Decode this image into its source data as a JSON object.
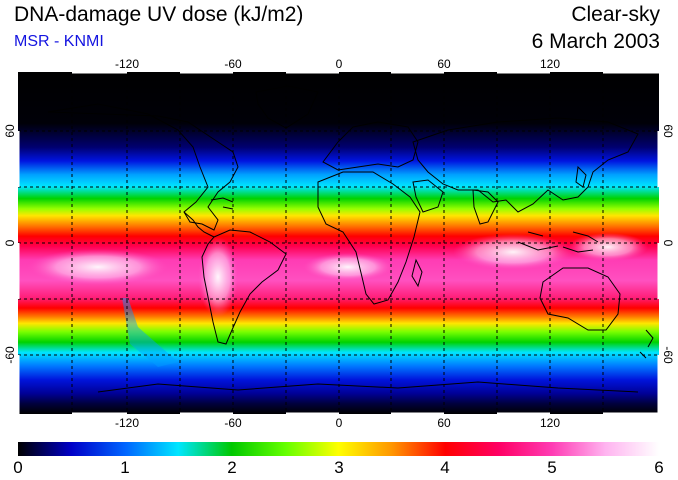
{
  "header": {
    "title": "DNA-damage UV dose (kJ/m2)",
    "subtitle": "MSR - KNMI",
    "condition": "Clear-sky",
    "date": "6 March 2003"
  },
  "map": {
    "lon_ticks": [
      "-120",
      "-60",
      "0",
      "60",
      "120"
    ],
    "lat_ticks": [
      "60",
      "0",
      "-60"
    ],
    "extent": {
      "lon": [
        -180,
        180
      ],
      "lat": [
        -90,
        90
      ]
    },
    "gridlines": "dashed, every 30°"
  },
  "colorbar": {
    "labels": [
      "0",
      "1",
      "2",
      "3",
      "4",
      "5",
      "6"
    ],
    "colors": [
      "#000000",
      "#0000c8",
      "#0064ff",
      "#00e6ff",
      "#00c800",
      "#64ff00",
      "#ffff00",
      "#ff9600",
      "#ff0000",
      "#ff0064",
      "#ff3cb4",
      "#ffb4f0",
      "#ffffff"
    ]
  }
}
